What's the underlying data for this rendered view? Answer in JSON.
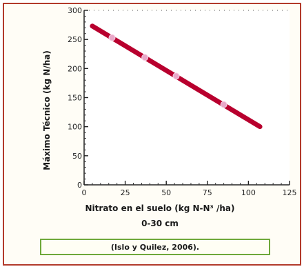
{
  "chart_data": {
    "type": "line",
    "ylabel": "Máximo Técnico (kg N/ha)",
    "xlabel": "Nitrato en el suelo (kg N-N³ /ha)",
    "xlabel_line2": "0-30 cm",
    "xlim": [
      0,
      125
    ],
    "ylim": [
      0,
      300
    ],
    "xticks": [
      0,
      25,
      50,
      75,
      100,
      125
    ],
    "yticks": [
      0,
      50,
      100,
      150,
      200,
      250,
      300
    ],
    "grid": false,
    "series": [
      {
        "x": [
          5,
          107
        ],
        "y": [
          273,
          100
        ],
        "color": "#b8002e"
      }
    ],
    "points": {
      "x": [
        17,
        37,
        56,
        85
      ],
      "y": [
        253,
        219,
        187,
        138
      ],
      "color": "#e9a8c8"
    }
  },
  "caption": "(Islo y Quilez, 2006)."
}
